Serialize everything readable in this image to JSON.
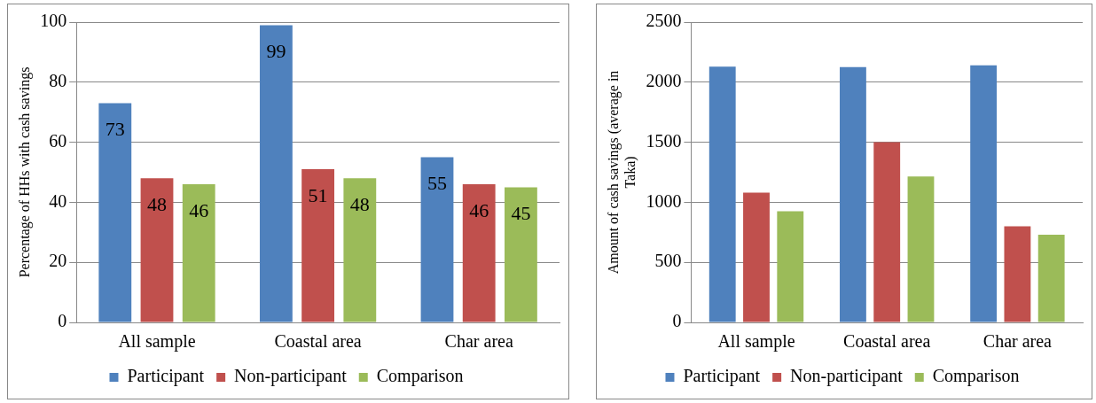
{
  "chart_data": [
    {
      "type": "bar",
      "ylabel": "Percentage of HHs with cash savings",
      "categories": [
        "All sample",
        "Coastal area",
        "Char area"
      ],
      "series": [
        {
          "name": "Participant",
          "color": "#4f81bd",
          "values": [
            73,
            99,
            55
          ]
        },
        {
          "name": "Non-participant",
          "color": "#c0504d",
          "values": [
            48,
            51,
            46
          ]
        },
        {
          "name": "Comparison",
          "color": "#9bbb59",
          "values": [
            46,
            48,
            45
          ]
        }
      ],
      "ylim": [
        0,
        100
      ],
      "yticks": [
        0,
        20,
        40,
        60,
        80,
        100
      ],
      "grid": "y",
      "legend": "bottom",
      "data_labels": true
    },
    {
      "type": "bar",
      "ylabel": "Amount of cash savings (average in Taka)",
      "categories": [
        "All sample",
        "Coastal area",
        "Char area"
      ],
      "series": [
        {
          "name": "Participant",
          "color": "#4f81bd",
          "values": [
            2130,
            2125,
            2140
          ]
        },
        {
          "name": "Non-participant",
          "color": "#c0504d",
          "values": [
            1080,
            1500,
            800
          ]
        },
        {
          "name": "Comparison",
          "color": "#9bbb59",
          "values": [
            925,
            1215,
            730
          ]
        }
      ],
      "ylim": [
        0,
        2500
      ],
      "yticks": [
        0,
        500,
        1000,
        1500,
        2000,
        2500
      ],
      "grid": "y",
      "legend": "bottom"
    }
  ]
}
